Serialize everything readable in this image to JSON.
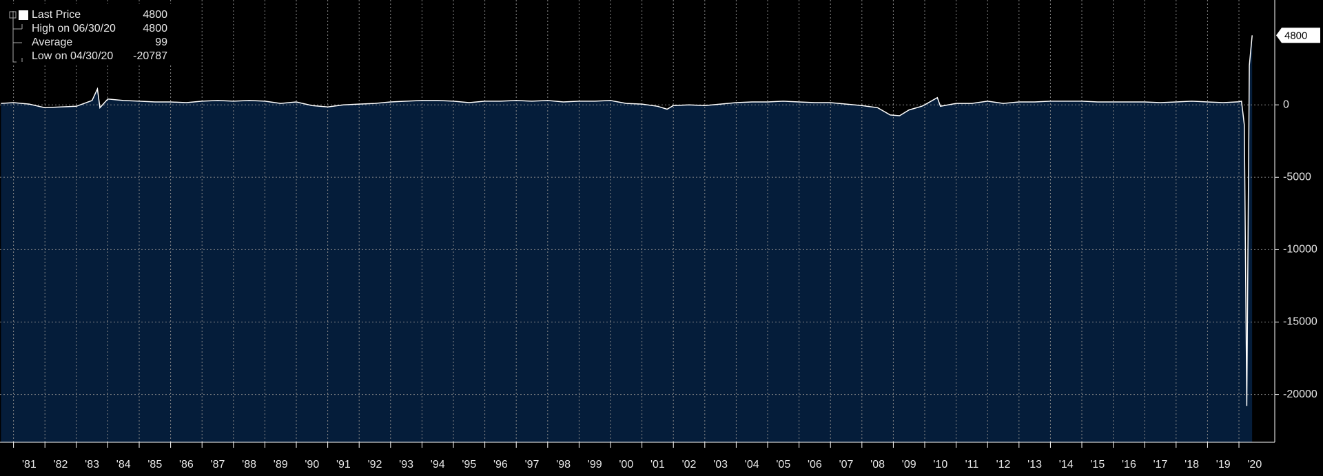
{
  "chart_data": {
    "type": "area",
    "legend": [
      {
        "label": "Last Price",
        "value": "4800"
      },
      {
        "label": "High on 06/30/20",
        "value": "4800"
      },
      {
        "label": "Average",
        "value": "99"
      },
      {
        "label": "Low on 04/30/20",
        "value": "-20787"
      }
    ],
    "x": [
      1980.6,
      1981.0,
      1981.5,
      1982.0,
      1982.5,
      1983.0,
      1983.5,
      1983.67,
      1983.75,
      1984.0,
      1984.5,
      1985.0,
      1985.5,
      1986.0,
      1986.5,
      1987.0,
      1987.5,
      1988.0,
      1988.5,
      1989.0,
      1989.5,
      1990.0,
      1990.5,
      1991.0,
      1991.5,
      1992.0,
      1992.5,
      1993.0,
      1993.5,
      1994.0,
      1994.5,
      1995.0,
      1995.5,
      1996.0,
      1996.5,
      1997.0,
      1997.5,
      1998.0,
      1998.5,
      1999.0,
      1999.5,
      2000.0,
      2000.5,
      2001.0,
      2001.5,
      2001.8,
      2002.0,
      2002.5,
      2003.0,
      2003.5,
      2004.0,
      2004.5,
      2005.0,
      2005.5,
      2006.0,
      2006.5,
      2007.0,
      2007.5,
      2008.0,
      2008.5,
      2008.9,
      2009.2,
      2009.5,
      2009.9,
      2010.0,
      2010.4,
      2010.5,
      2011.0,
      2011.5,
      2012.0,
      2012.5,
      2013.0,
      2013.5,
      2014.0,
      2014.5,
      2015.0,
      2015.5,
      2016.0,
      2016.5,
      2017.0,
      2017.5,
      2018.0,
      2018.5,
      2019.0,
      2019.5,
      2019.9,
      2020.0,
      2020.08,
      2020.17,
      2020.25,
      2020.33,
      2020.42
    ],
    "series": [
      {
        "name": "Last Price",
        "color": "#ffffff",
        "fill": "#051d3a",
        "values": [
          100,
          150,
          50,
          -200,
          -150,
          -100,
          300,
          1100,
          -200,
          400,
          300,
          250,
          200,
          200,
          150,
          250,
          300,
          250,
          300,
          250,
          100,
          200,
          -50,
          -150,
          0,
          50,
          100,
          200,
          250,
          300,
          300,
          250,
          150,
          250,
          250,
          300,
          250,
          300,
          200,
          250,
          250,
          300,
          100,
          50,
          -100,
          -300,
          -50,
          0,
          -50,
          50,
          150,
          200,
          200,
          250,
          200,
          150,
          150,
          50,
          -50,
          -200,
          -700,
          -750,
          -350,
          -100,
          0,
          500,
          -100,
          100,
          100,
          250,
          100,
          200,
          200,
          250,
          250,
          250,
          200,
          200,
          200,
          200,
          150,
          200,
          250,
          200,
          150,
          200,
          214,
          251,
          -1373,
          -20787,
          2725,
          4800
        ]
      }
    ],
    "xlim": [
      1980.57,
      2021.14
    ],
    "ylim": [
      -23300,
      7240
    ],
    "yticks": [
      0,
      -5000,
      -10000,
      -15000,
      -20000
    ],
    "xticks": [
      {
        "value": 1981,
        "label": "'81"
      },
      {
        "value": 1982,
        "label": "'82"
      },
      {
        "value": 1983,
        "label": "'83"
      },
      {
        "value": 1984,
        "label": "'84"
      },
      {
        "value": 1985,
        "label": "'85"
      },
      {
        "value": 1986,
        "label": "'86"
      },
      {
        "value": 1987,
        "label": "'87"
      },
      {
        "value": 1988,
        "label": "'88"
      },
      {
        "value": 1989,
        "label": "'89"
      },
      {
        "value": 1990,
        "label": "'90"
      },
      {
        "value": 1991,
        "label": "'91"
      },
      {
        "value": 1992,
        "label": "'92"
      },
      {
        "value": 1993,
        "label": "'93"
      },
      {
        "value": 1994,
        "label": "'94"
      },
      {
        "value": 1995,
        "label": "'95"
      },
      {
        "value": 1996,
        "label": "'96"
      },
      {
        "value": 1997,
        "label": "'97"
      },
      {
        "value": 1998,
        "label": "'98"
      },
      {
        "value": 1999,
        "label": "'99"
      },
      {
        "value": 2000,
        "label": "'00"
      },
      {
        "value": 2001,
        "label": "'01"
      },
      {
        "value": 2002,
        "label": "'02"
      },
      {
        "value": 2003,
        "label": "'03"
      },
      {
        "value": 2004,
        "label": "'04"
      },
      {
        "value": 2005,
        "label": "'05"
      },
      {
        "value": 2006,
        "label": "'06"
      },
      {
        "value": 2007,
        "label": "'07"
      },
      {
        "value": 2008,
        "label": "'08"
      },
      {
        "value": 2009,
        "label": "'09"
      },
      {
        "value": 2010,
        "label": "'10"
      },
      {
        "value": 2011,
        "label": "'11"
      },
      {
        "value": 2012,
        "label": "'12"
      },
      {
        "value": 2013,
        "label": "'13"
      },
      {
        "value": 2014,
        "label": "'14"
      },
      {
        "value": 2015,
        "label": "'15"
      },
      {
        "value": 2016,
        "label": "'16"
      },
      {
        "value": 2017,
        "label": "'17"
      },
      {
        "value": 2018,
        "label": "'18"
      },
      {
        "value": 2019,
        "label": "'19"
      },
      {
        "value": 2020,
        "label": "'20"
      }
    ],
    "grid": true
  }
}
